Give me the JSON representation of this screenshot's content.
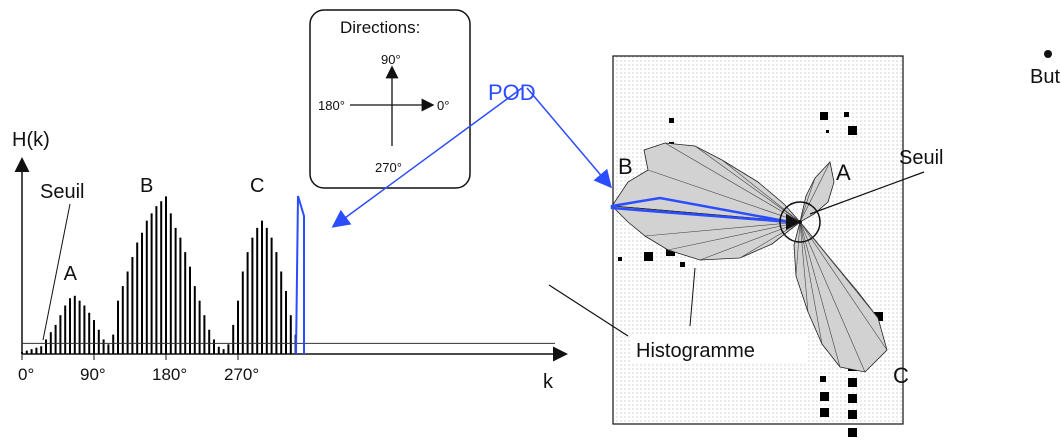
{
  "histogram": {
    "ylabel": "H(k)",
    "xlabel": "k",
    "threshold_label": "Seuil",
    "ticks": [
      {
        "value": 0,
        "label": "0°"
      },
      {
        "value": 90,
        "label": "90°"
      },
      {
        "value": 180,
        "label": "180°"
      },
      {
        "value": 270,
        "label": "270°"
      }
    ],
    "peaks": [
      {
        "label": "A",
        "angle": 62
      },
      {
        "label": "B",
        "angle": 180
      },
      {
        "label": "C",
        "angle": 295
      }
    ],
    "bars": [
      [
        0,
        0.4
      ],
      [
        6,
        0.7
      ],
      [
        12,
        1.0
      ],
      [
        18,
        1.3
      ],
      [
        24,
        1.6
      ],
      [
        30,
        3
      ],
      [
        36,
        4.5
      ],
      [
        42,
        6
      ],
      [
        48,
        8
      ],
      [
        54,
        10
      ],
      [
        60,
        11.5
      ],
      [
        66,
        12
      ],
      [
        72,
        11
      ],
      [
        78,
        10
      ],
      [
        84,
        8.5
      ],
      [
        90,
        7
      ],
      [
        96,
        5
      ],
      [
        102,
        3
      ],
      [
        108,
        2
      ],
      [
        114,
        4
      ],
      [
        120,
        11
      ],
      [
        126,
        14
      ],
      [
        132,
        17
      ],
      [
        138,
        20
      ],
      [
        144,
        23
      ],
      [
        150,
        25
      ],
      [
        156,
        27.5
      ],
      [
        162,
        29
      ],
      [
        168,
        30.5
      ],
      [
        174,
        31.5
      ],
      [
        180,
        32.5
      ],
      [
        186,
        29
      ],
      [
        192,
        26
      ],
      [
        198,
        24
      ],
      [
        204,
        21
      ],
      [
        210,
        18
      ],
      [
        216,
        14
      ],
      [
        222,
        11
      ],
      [
        228,
        8
      ],
      [
        234,
        5
      ],
      [
        240,
        3
      ],
      [
        246,
        1.5
      ],
      [
        252,
        1
      ],
      [
        258,
        2
      ],
      [
        264,
        6
      ],
      [
        270,
        11
      ],
      [
        276,
        17
      ],
      [
        282,
        21
      ],
      [
        288,
        24
      ],
      [
        294,
        26
      ],
      [
        300,
        27.5
      ],
      [
        306,
        26
      ],
      [
        312,
        24
      ],
      [
        318,
        21
      ],
      [
        324,
        17
      ],
      [
        330,
        13
      ],
      [
        336,
        8
      ],
      [
        342,
        4
      ]
    ],
    "threshold": 2.2
  },
  "directions": {
    "title": "Directions:",
    "labels": {
      "north": "90°",
      "west": "180°",
      "east": "0°",
      "south": "270°"
    }
  },
  "pod_label": "POD",
  "map": {
    "labels": {
      "A": "A",
      "B": "B",
      "C": "C",
      "seuil": "Seuil",
      "histogramme": "Histogramme"
    }
  },
  "bullet_text": "But",
  "colors": {
    "pod": "#2c4cff",
    "bars": "#000000",
    "polar_fill": "#cfcfcf"
  }
}
